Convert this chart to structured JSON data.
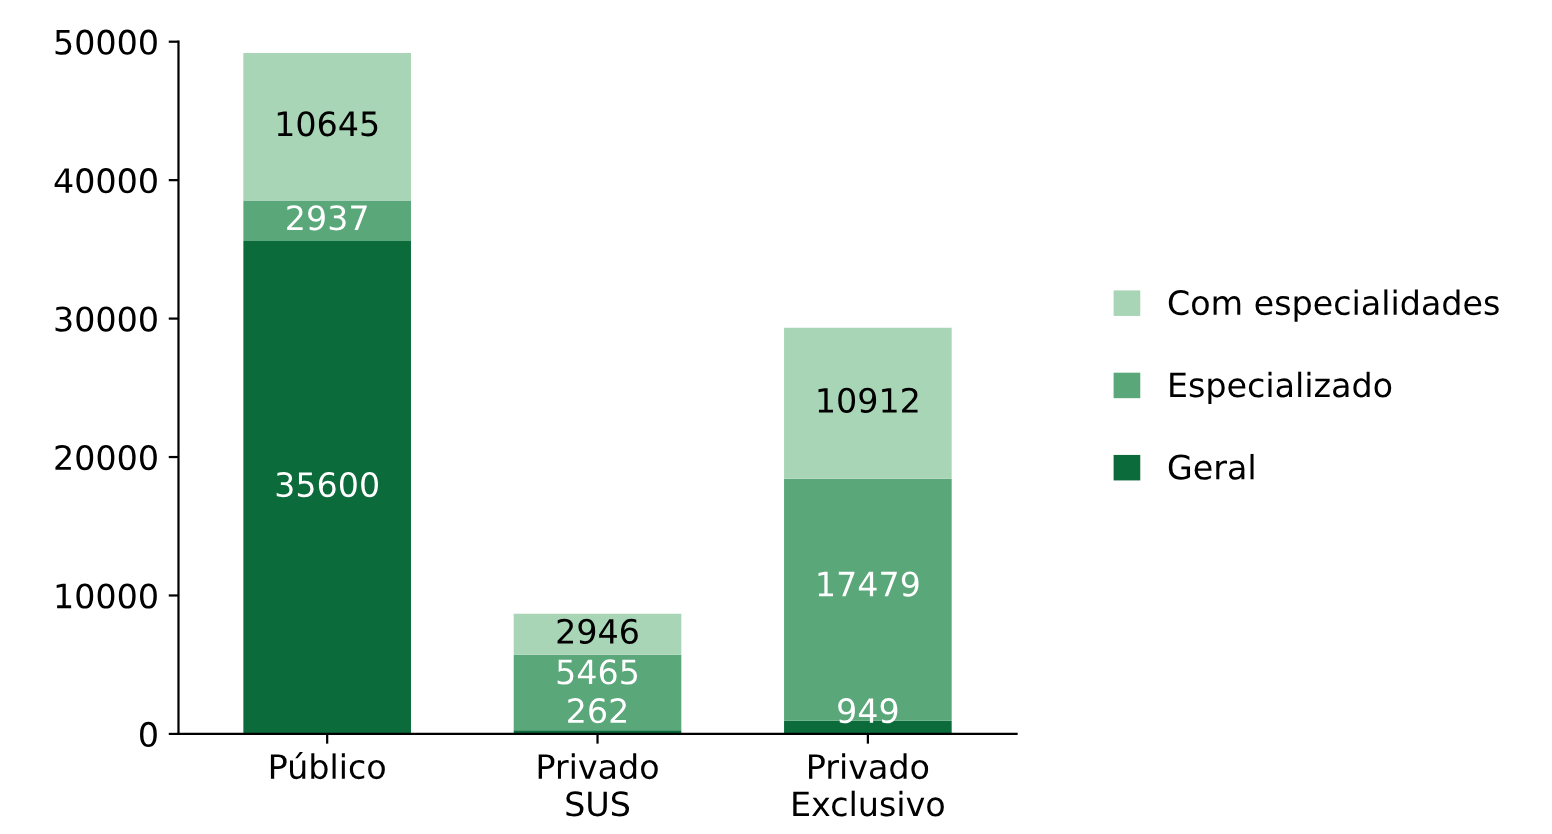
{
  "chart_data": {
    "type": "bar",
    "stacked": true,
    "categories": [
      "Público",
      "Privado\nSUS",
      "Privado\nExclusivo"
    ],
    "series": [
      {
        "name": "Geral",
        "color": "#0b6b3a",
        "values": [
          35600,
          262,
          949
        ]
      },
      {
        "name": "Especializado",
        "color": "#5aa77a",
        "values": [
          2937,
          5465,
          17479
        ]
      },
      {
        "name": "Com especialidades",
        "color": "#a8d5b5",
        "values": [
          10645,
          2946,
          10912
        ]
      }
    ],
    "ylim": [
      0,
      50000
    ],
    "yticks": [
      0,
      10000,
      20000,
      30000,
      40000,
      50000
    ],
    "grid": false,
    "legend": "right",
    "data_labels": true
  }
}
